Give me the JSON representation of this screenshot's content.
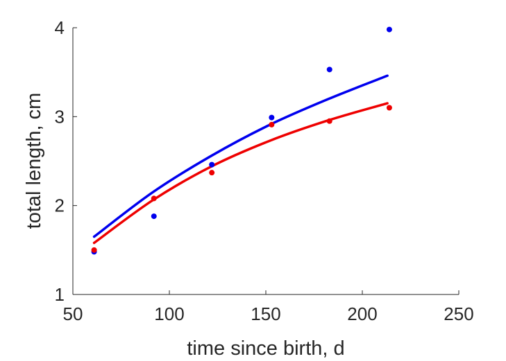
{
  "chart_data": {
    "type": "scatter",
    "xlabel": "time since birth, d",
    "ylabel": "total length, cm",
    "xlim": [
      50,
      250
    ],
    "ylim": [
      1,
      4
    ],
    "xticks": [
      50,
      100,
      150,
      200,
      250
    ],
    "yticks": [
      1,
      2,
      3,
      4
    ],
    "grid": false,
    "series": [
      {
        "color": "#0000ee",
        "points": {
          "x": [
            61,
            92,
            122,
            153,
            183,
            214
          ],
          "y": [
            1.48,
            1.88,
            2.46,
            2.99,
            3.53,
            3.98
          ]
        },
        "fit_curve": {
          "x": [
            61,
            91.4,
            121.8,
            152.2,
            182.6,
            213
          ],
          "y": [
            1.65,
            2.15,
            2.56,
            2.91,
            3.2,
            3.46
          ]
        }
      },
      {
        "color": "#ee0000",
        "points": {
          "x": [
            61,
            92,
            122,
            153,
            183,
            214
          ],
          "y": [
            1.5,
            2.08,
            2.37,
            2.91,
            2.95,
            3.1
          ]
        },
        "fit_curve": {
          "x": [
            61,
            91.4,
            121.8,
            152.2,
            182.6,
            213
          ],
          "y": [
            1.58,
            2.06,
            2.44,
            2.73,
            2.96,
            3.15
          ]
        }
      }
    ]
  }
}
